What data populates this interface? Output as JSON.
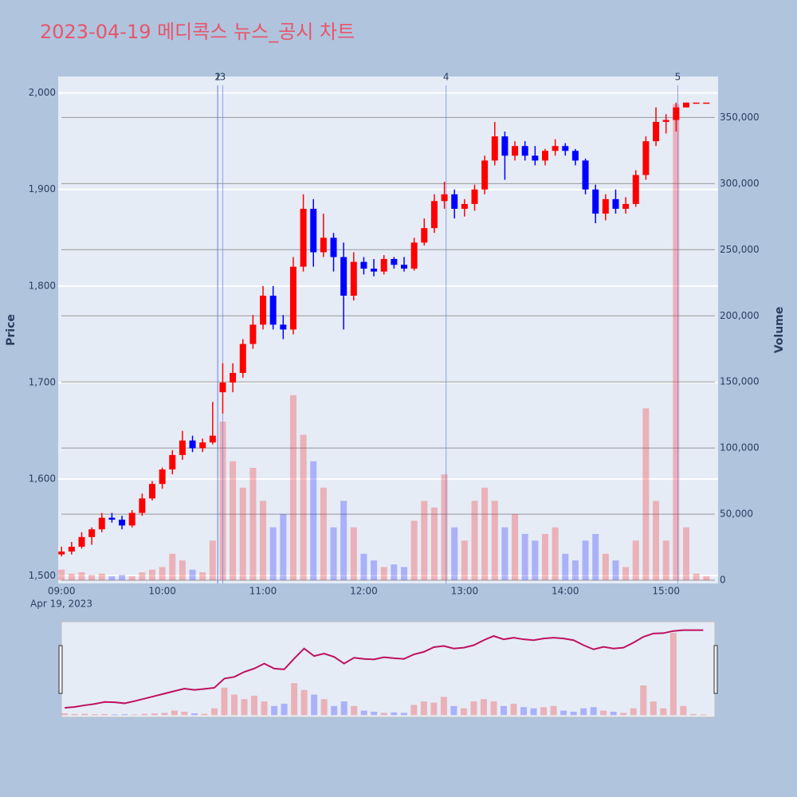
{
  "chart_data": {
    "type": "candlestick",
    "title": "2023-04-19 메디콕스 뉴스_공시 차트",
    "date_label": "Apr 19, 2023",
    "y_label": "Price",
    "y2_label": "Volume",
    "x": [
      "09:00",
      "09:06",
      "09:12",
      "09:18",
      "09:24",
      "09:30",
      "09:36",
      "09:42",
      "09:48",
      "09:54",
      "10:00",
      "10:06",
      "10:12",
      "10:18",
      "10:24",
      "10:30",
      "10:36",
      "10:42",
      "10:48",
      "10:54",
      "11:00",
      "11:06",
      "11:12",
      "11:18",
      "11:24",
      "11:30",
      "11:36",
      "11:42",
      "11:48",
      "11:54",
      "12:00",
      "12:06",
      "12:12",
      "12:18",
      "12:24",
      "12:30",
      "12:36",
      "12:42",
      "12:48",
      "12:54",
      "13:00",
      "13:06",
      "13:12",
      "13:18",
      "13:24",
      "13:30",
      "13:36",
      "13:42",
      "13:48",
      "13:54",
      "14:00",
      "14:06",
      "14:12",
      "14:18",
      "14:24",
      "14:30",
      "14:36",
      "14:42",
      "14:48",
      "14:54",
      "15:00",
      "15:06",
      "15:12",
      "15:18",
      "15:24"
    ],
    "open": [
      1522,
      1525,
      1530,
      1540,
      1548,
      1560,
      1558,
      1552,
      1565,
      1580,
      1595,
      1610,
      1625,
      1640,
      1632,
      1638,
      1690,
      1700,
      1710,
      1740,
      1760,
      1790,
      1760,
      1755,
      1820,
      1880,
      1835,
      1850,
      1830,
      1790,
      1825,
      1818,
      1815,
      1828,
      1822,
      1818,
      1845,
      1860,
      1888,
      1895,
      1880,
      1885,
      1900,
      1930,
      1955,
      1935,
      1945,
      1935,
      1930,
      1940,
      1945,
      1940,
      1930,
      1900,
      1875,
      1890,
      1880,
      1885,
      1915,
      1950,
      1970,
      1972,
      1985,
      1990,
      1990
    ],
    "high": [
      1530,
      1535,
      1545,
      1550,
      1565,
      1565,
      1562,
      1568,
      1585,
      1598,
      1612,
      1630,
      1650,
      1645,
      1642,
      1680,
      1720,
      1720,
      1745,
      1770,
      1800,
      1800,
      1770,
      1830,
      1895,
      1890,
      1875,
      1855,
      1845,
      1835,
      1830,
      1828,
      1832,
      1830,
      1830,
      1850,
      1870,
      1895,
      1908,
      1900,
      1890,
      1905,
      1935,
      1970,
      1960,
      1950,
      1950,
      1945,
      1942,
      1952,
      1948,
      1942,
      1932,
      1905,
      1895,
      1900,
      1892,
      1920,
      1955,
      1985,
      1978,
      1990,
      1990,
      1990,
      1990
    ],
    "low": [
      1520,
      1522,
      1528,
      1532,
      1545,
      1555,
      1548,
      1550,
      1562,
      1578,
      1590,
      1605,
      1620,
      1628,
      1628,
      1636,
      1668,
      1690,
      1705,
      1735,
      1755,
      1755,
      1745,
      1750,
      1815,
      1820,
      1830,
      1815,
      1755,
      1785,
      1812,
      1810,
      1812,
      1818,
      1815,
      1816,
      1842,
      1855,
      1880,
      1870,
      1872,
      1878,
      1895,
      1925,
      1910,
      1930,
      1930,
      1925,
      1925,
      1935,
      1935,
      1925,
      1895,
      1865,
      1868,
      1875,
      1875,
      1882,
      1910,
      1945,
      1958,
      1960,
      1985,
      1990,
      1990
    ],
    "close": [
      1525,
      1530,
      1540,
      1548,
      1560,
      1558,
      1552,
      1565,
      1580,
      1595,
      1610,
      1625,
      1640,
      1632,
      1638,
      1645,
      1700,
      1710,
      1740,
      1760,
      1790,
      1760,
      1755,
      1820,
      1880,
      1835,
      1850,
      1830,
      1790,
      1825,
      1818,
      1815,
      1828,
      1822,
      1818,
      1845,
      1860,
      1888,
      1895,
      1880,
      1885,
      1900,
      1930,
      1955,
      1935,
      1945,
      1935,
      1930,
      1940,
      1945,
      1940,
      1930,
      1900,
      1875,
      1890,
      1880,
      1885,
      1915,
      1950,
      1970,
      1972,
      1985,
      1990,
      1990,
      1990
    ],
    "volume": [
      8000,
      5000,
      6000,
      4000,
      5000,
      3000,
      4000,
      3000,
      6000,
      8000,
      10000,
      20000,
      15000,
      8000,
      6000,
      30000,
      120000,
      90000,
      70000,
      85000,
      60000,
      40000,
      50000,
      140000,
      110000,
      90000,
      70000,
      40000,
      60000,
      40000,
      20000,
      15000,
      10000,
      12000,
      10000,
      45000,
      60000,
      55000,
      80000,
      40000,
      30000,
      60000,
      70000,
      60000,
      40000,
      50000,
      35000,
      30000,
      35000,
      40000,
      20000,
      15000,
      30000,
      35000,
      20000,
      15000,
      10000,
      30000,
      130000,
      60000,
      30000,
      360000,
      40000,
      5000,
      3000
    ],
    "up_color": "#ff0000",
    "down_color": "#0000ff",
    "events": [
      {
        "x": "10:33",
        "label": "1"
      },
      {
        "x": "10:33",
        "label": "2"
      },
      {
        "x": "10:36",
        "label": "3"
      },
      {
        "x": "12:49",
        "label": "4"
      },
      {
        "x": "15:07",
        "label": "5"
      }
    ],
    "xlim": [
      "08:58",
      "15:31"
    ],
    "xticks": [
      "09:00",
      "10:00",
      "11:00",
      "12:00",
      "13:00",
      "14:00",
      "15:00"
    ],
    "ylim": [
      1492,
      2017
    ],
    "yticks": [
      {
        "value": 1500,
        "label": "1,500"
      },
      {
        "value": 1600,
        "label": "1,600"
      },
      {
        "value": 1700,
        "label": "1,700"
      },
      {
        "value": 1800,
        "label": "1,800"
      },
      {
        "value": 1900,
        "label": "1,900"
      },
      {
        "value": 2000,
        "label": "2,000"
      }
    ],
    "y2lim": [
      -2400,
      381000
    ],
    "y2ticks": [
      0,
      {
        "value": 50000,
        "label": "50,000"
      },
      {
        "value": 100000,
        "label": "100,000"
      },
      {
        "value": 150000,
        "label": "150,000"
      },
      {
        "value": 200000,
        "label": "200,000"
      },
      {
        "value": 250000,
        "label": "250,000"
      },
      {
        "value": 300000,
        "label": "300,000"
      },
      {
        "value": 350000,
        "label": "350,000"
      }
    ],
    "grid": true
  }
}
